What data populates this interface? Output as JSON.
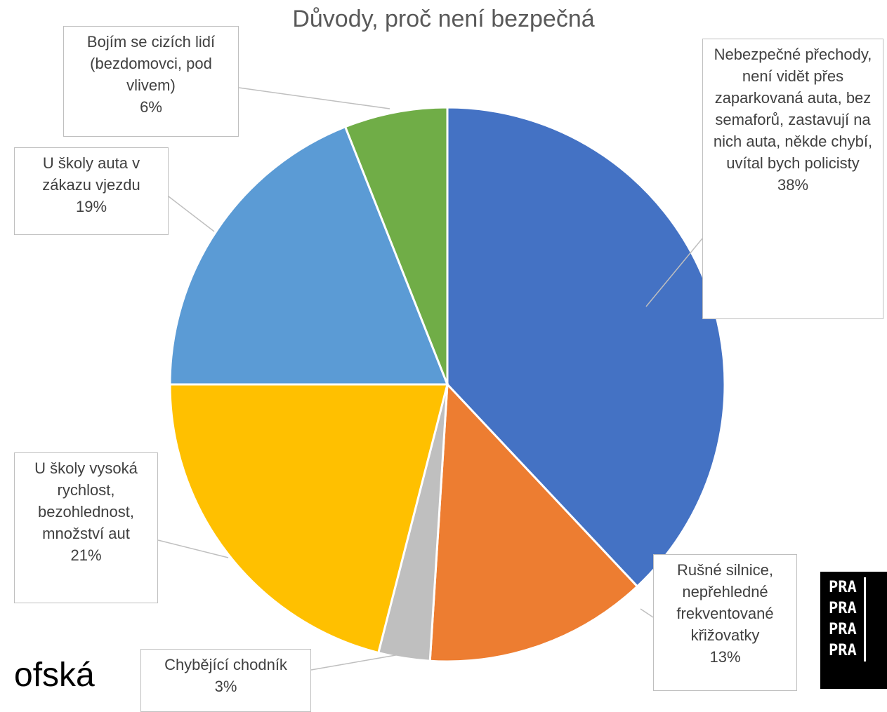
{
  "chart_data": {
    "type": "pie",
    "title": "Důvody, proč není bezpečná",
    "categories": [
      "Nebezpečné přechody, není vidět přes zaparkovaná auta, bez semaforů, zastavují na nich auta, někde chybí, uvítal bych policisty",
      "Rušné silnice, nepřehledné frekventované křižovatky",
      "Chybějící chodník",
      "U školy vysoká rychlost, bezohlednost, množství aut",
      "U školy auta v zákazu vjezdu",
      "Bojím se cizích lidí (bezdomovci, pod vlivem)"
    ],
    "values": [
      38,
      13,
      3,
      21,
      19,
      6
    ],
    "value_labels": [
      "38%",
      "13%",
      "3%",
      "21%",
      "19%",
      "6%"
    ],
    "colors": [
      "#4472c4",
      "#ed7d31",
      "#bfbfbf",
      "#ffc000",
      "#5b9bd5",
      "#70ad47"
    ]
  },
  "page": {
    "fragment_text": "ofská",
    "logo": [
      "PRA",
      "PRA",
      "PRA",
      "PRA"
    ]
  }
}
